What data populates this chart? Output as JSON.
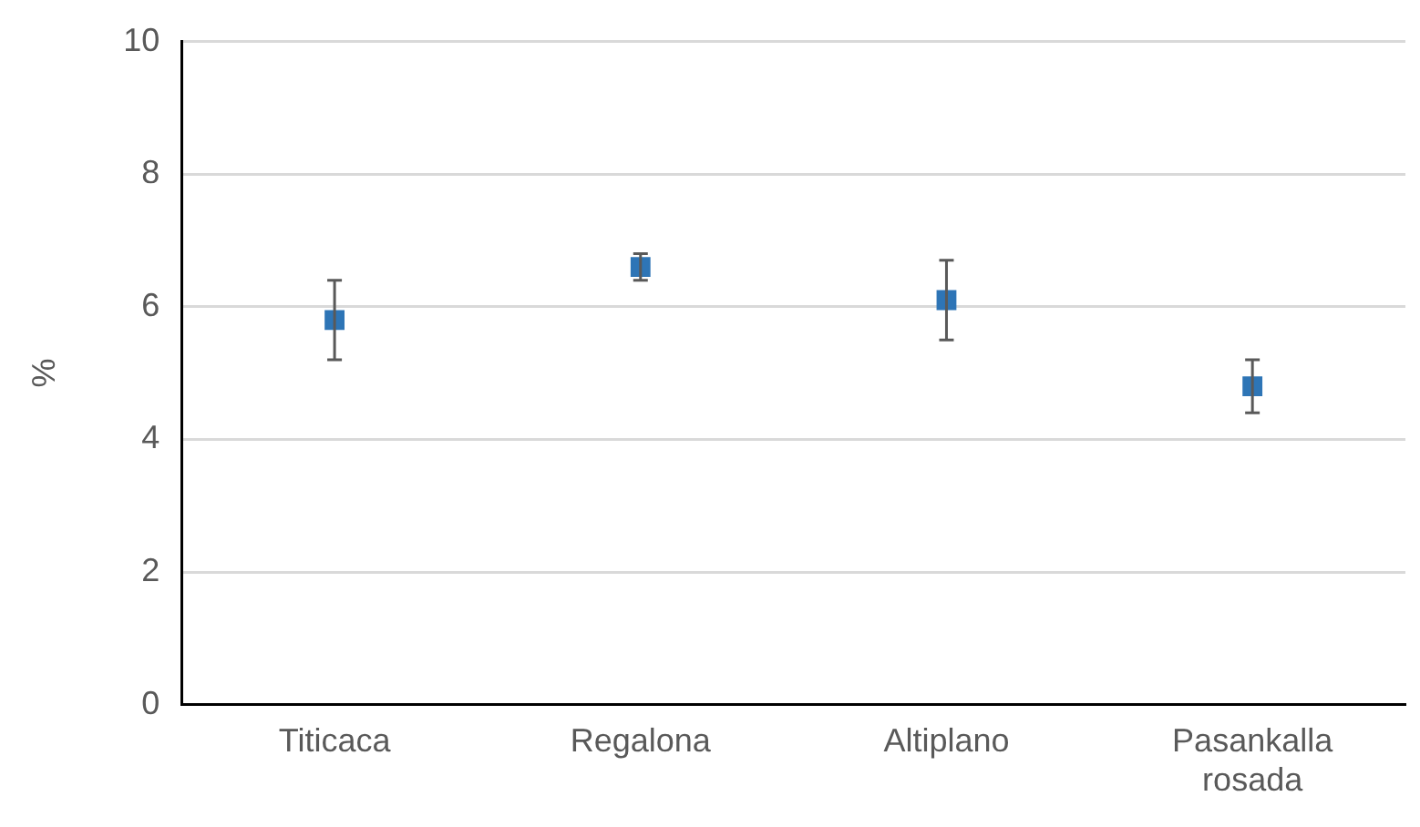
{
  "chart_data": {
    "type": "scatter",
    "ylabel": "%",
    "categories": [
      "Titicaca",
      "Regalona",
      "Altiplano",
      "Pasankalla rosada"
    ],
    "values": [
      5.8,
      6.6,
      6.1,
      4.8
    ],
    "marker": "square",
    "errors": [
      [
        5.2,
        6.4
      ],
      [
        6.4,
        6.8
      ],
      [
        5.5,
        6.7
      ],
      [
        4.4,
        5.2
      ]
    ],
    "color": "#2e75b6",
    "ylim": [
      0,
      10
    ],
    "yticks": [
      0,
      2,
      4,
      6,
      8,
      10
    ],
    "grid": "y",
    "legend": false
  }
}
